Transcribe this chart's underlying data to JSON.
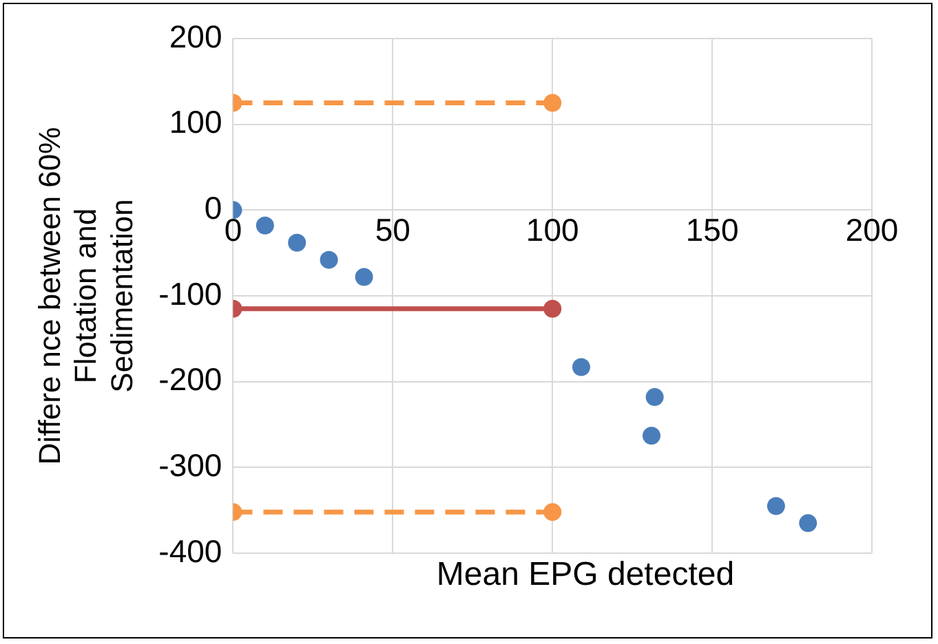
{
  "chart_data": {
    "type": "scatter",
    "xlabel": "Mean EPG detected",
    "ylabel": "Differe nce between 60%\nFlotation and\nSedimentation",
    "xlim": [
      0,
      200
    ],
    "xticks": [
      0,
      50,
      100,
      150,
      200
    ],
    "ylim": [
      -400,
      200
    ],
    "yticks": [
      -400,
      -300,
      -200,
      -100,
      0,
      100,
      200
    ],
    "grid": true,
    "marker": "circle",
    "series": [
      {
        "type": "scatter",
        "color": "#4a7ebb",
        "x": [
          0,
          10,
          20,
          30,
          39,
          41,
          109,
          131,
          132,
          170,
          180
        ],
        "values": [
          0,
          -18,
          -38,
          -58,
          null,
          -78,
          -183,
          -263,
          -218,
          -345,
          -365
        ]
      },
      {
        "type": "line",
        "color": "#f79646",
        "line_style": "dashed",
        "x": [
          0,
          100
        ],
        "values": [
          125,
          125
        ]
      },
      {
        "type": "line",
        "color": "#c0504d",
        "line_style": "solid",
        "x": [
          0,
          100
        ],
        "values": [
          -115,
          -115
        ]
      },
      {
        "type": "line",
        "color": "#f79646",
        "line_style": "dashed",
        "x": [
          0,
          100
        ],
        "values": [
          -352,
          -352
        ]
      }
    ]
  }
}
